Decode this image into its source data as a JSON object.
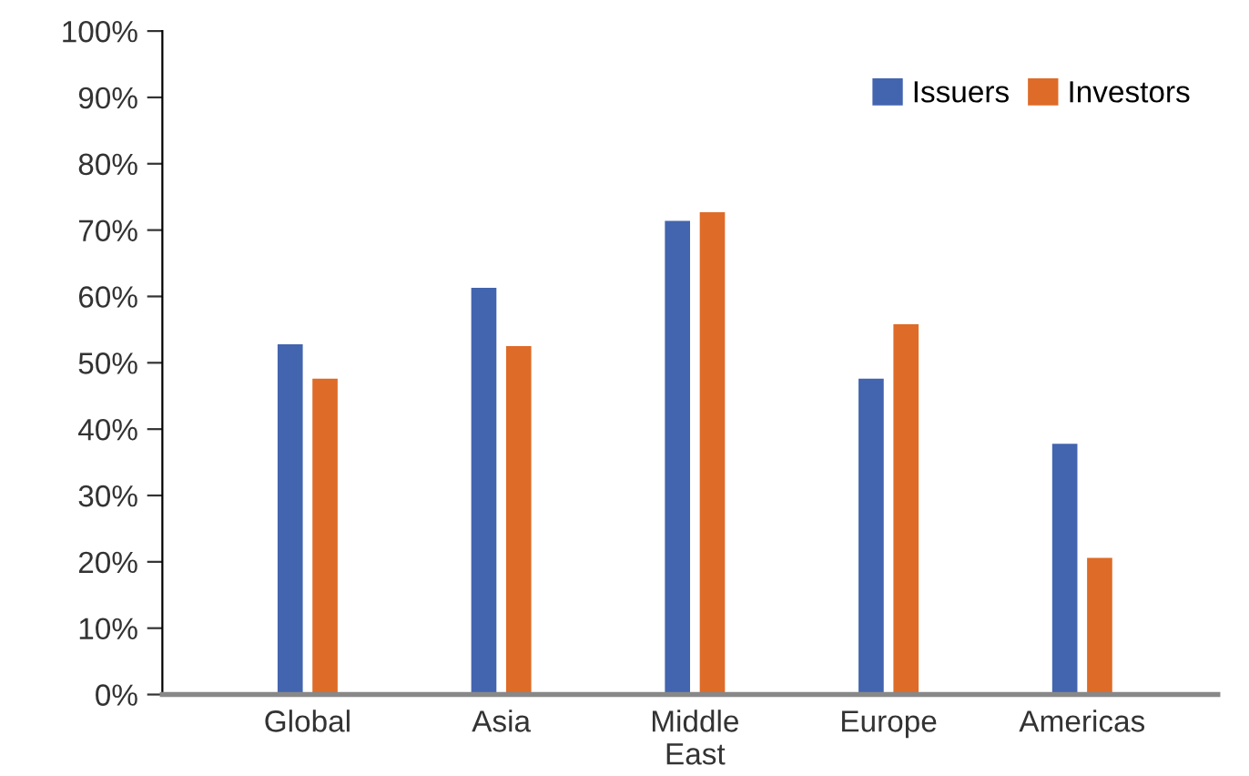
{
  "chart_data": {
    "type": "bar",
    "categories": [
      "Global",
      "Asia",
      "Middle\nEast",
      "Europe",
      "Americas"
    ],
    "series": [
      {
        "name": "Issuers",
        "color": "#4364ae",
        "values": [
          52.8,
          61.3,
          71.4,
          47.6,
          37.8
        ]
      },
      {
        "name": "Investors",
        "color": "#de6b28",
        "values": [
          47.6,
          52.5,
          72.7,
          55.8,
          20.6
        ]
      }
    ],
    "ylim": [
      0,
      100
    ],
    "yticks": [
      {
        "value": 0,
        "label": "0%"
      },
      {
        "value": 10,
        "label": "10%"
      },
      {
        "value": 20,
        "label": "20%"
      },
      {
        "value": 30,
        "label": "30%"
      },
      {
        "value": 40,
        "label": "40%"
      },
      {
        "value": 50,
        "label": "50%"
      },
      {
        "value": 60,
        "label": "60%"
      },
      {
        "value": 70,
        "label": "70%"
      },
      {
        "value": 80,
        "label": "80%"
      },
      {
        "value": 90,
        "label": "90%"
      },
      {
        "value": 100,
        "label": "100%"
      }
    ],
    "grid": false,
    "legend": "top right"
  }
}
